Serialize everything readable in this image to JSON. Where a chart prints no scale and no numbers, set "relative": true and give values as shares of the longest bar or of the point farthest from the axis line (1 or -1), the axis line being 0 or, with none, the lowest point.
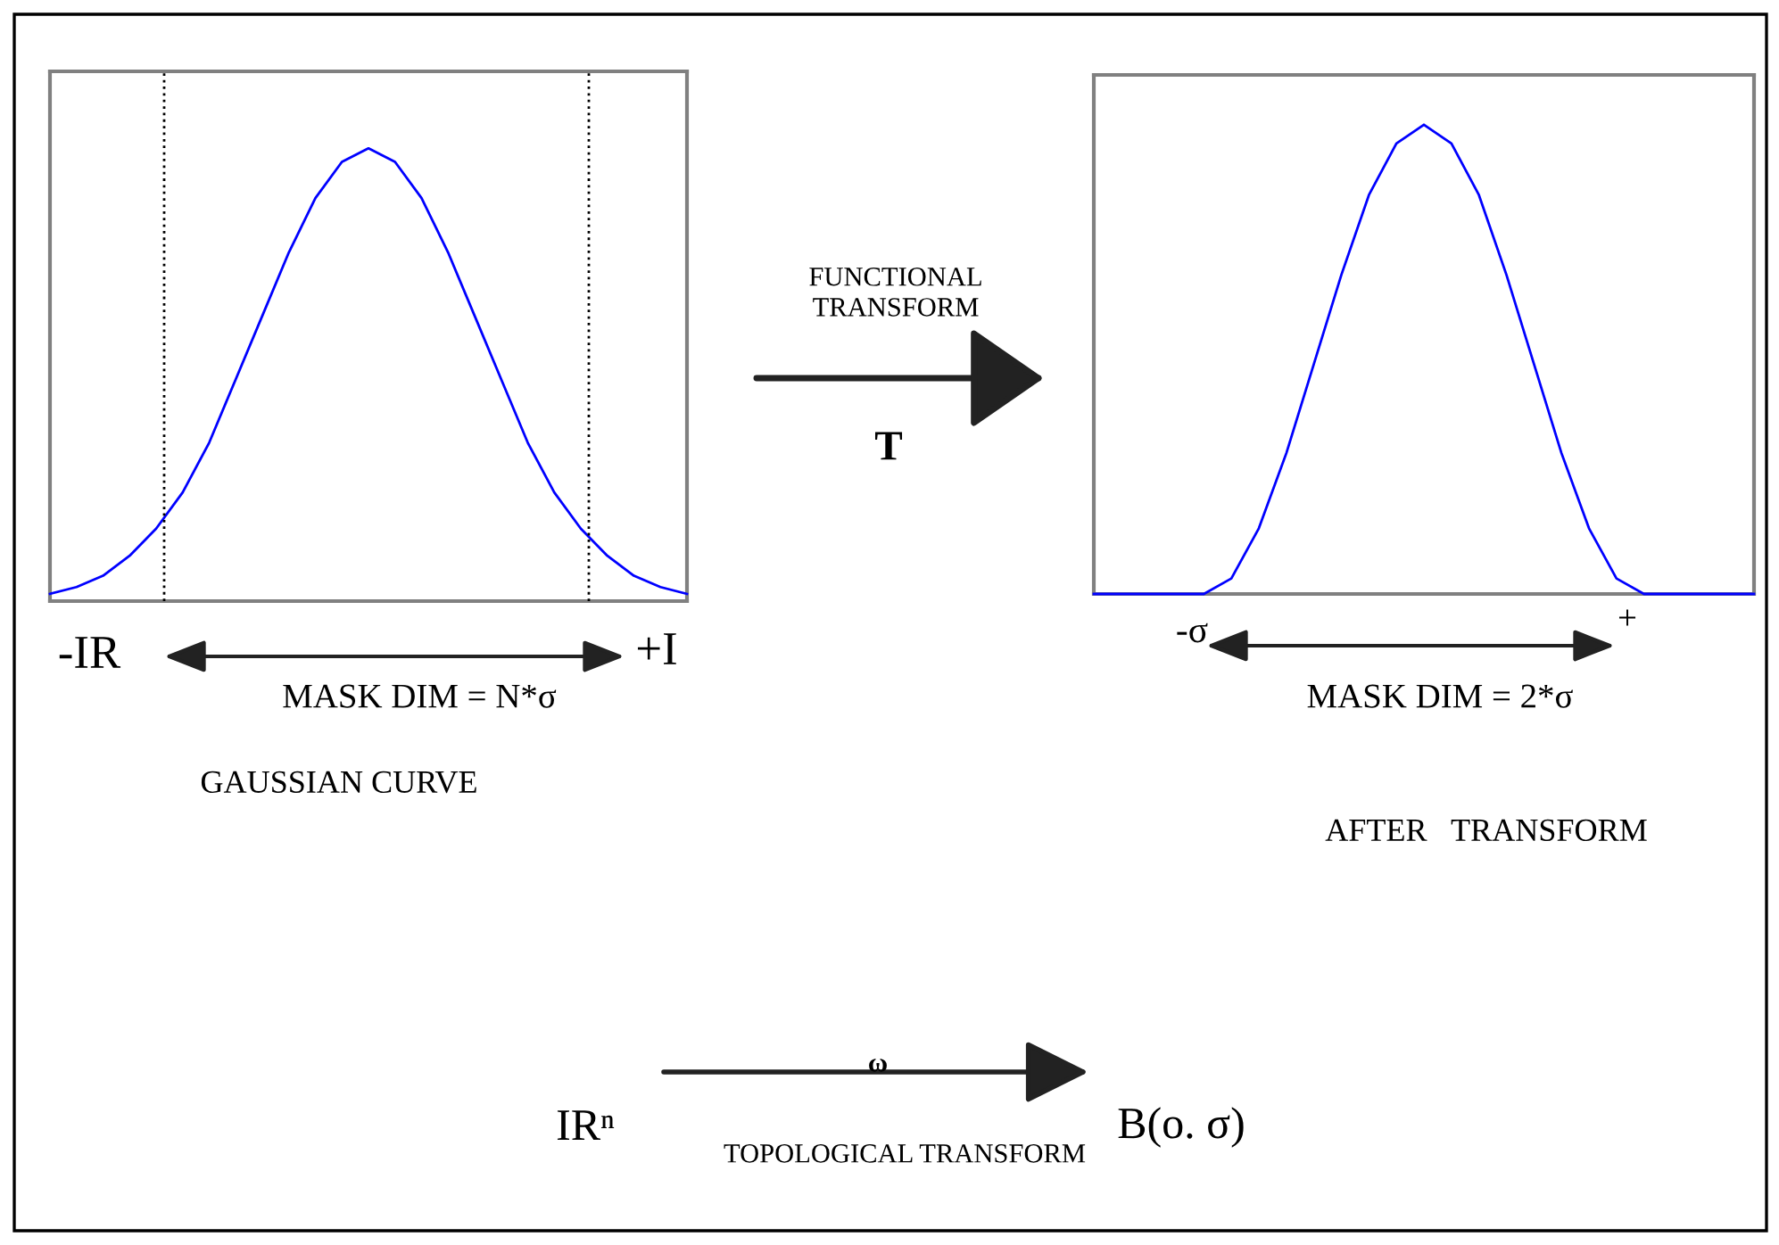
{
  "chart_data": [
    {
      "type": "line",
      "relative": true,
      "tick_labels": false,
      "marker": "none",
      "line_style": "solid",
      "categories": [
        null,
        null,
        null,
        null,
        null,
        null,
        null,
        null,
        null,
        null,
        null,
        null,
        null,
        null,
        null,
        null,
        null,
        null,
        null,
        null,
        null,
        null,
        null,
        null,
        null
      ],
      "series": [
        {
          "color": "#0000ff",
          "values": [
            0.016,
            0.031,
            0.056,
            0.1,
            0.16,
            0.24,
            0.35,
            0.49,
            0.63,
            0.77,
            0.89,
            0.97,
            1,
            0.97,
            0.89,
            0.77,
            0.63,
            0.49,
            0.35,
            0.24,
            0.16,
            0.1,
            0.056,
            0.031,
            0.016
          ]
        }
      ],
      "annotations": [
        "-IR",
        "+I",
        "MASK DIM = N*σ",
        "GAUSSIAN CURVE",
        "FUNCTIONAL\nTRANSFORM",
        "T"
      ]
    },
    {
      "type": "line",
      "relative": true,
      "tick_labels": false,
      "marker": "none",
      "line_style": "solid",
      "categories": [
        null,
        null,
        null,
        null,
        null,
        null,
        null,
        null,
        null,
        null,
        null,
        null,
        null,
        null,
        null,
        null,
        null,
        null,
        null,
        null,
        null,
        null,
        null,
        null,
        null
      ],
      "series": [
        {
          "color": "#0000ff",
          "values": [
            0,
            0,
            0,
            0,
            0,
            0.033,
            0.14,
            0.3,
            0.49,
            0.68,
            0.85,
            0.96,
            1,
            0.96,
            0.85,
            0.68,
            0.49,
            0.3,
            0.14,
            0.033,
            0,
            0,
            0,
            0,
            0
          ]
        }
      ],
      "annotations": [
        "-σ",
        "+",
        "MASK DIM = 2*σ",
        "AFTER   TRANSFORM",
        "IRⁿ",
        "ω",
        "B(o. σ)",
        "TOPOLOGICAL TRANSFORM"
      ]
    }
  ]
}
